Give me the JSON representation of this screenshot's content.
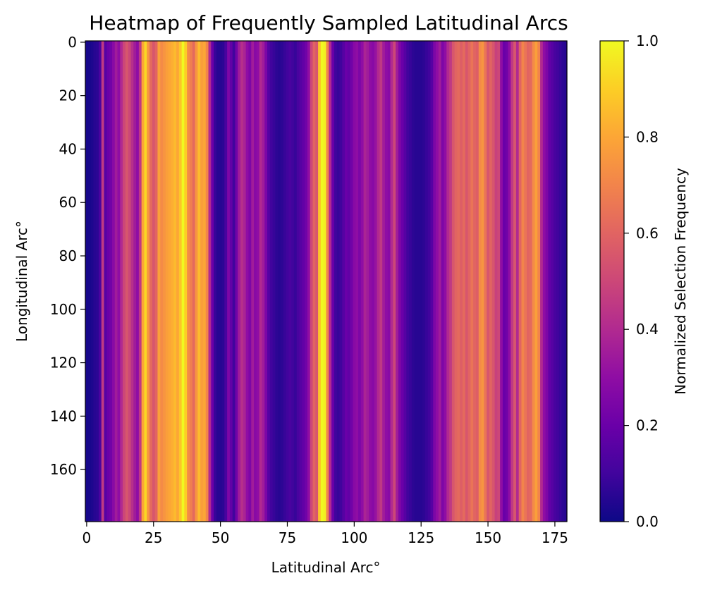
{
  "chart_data": {
    "type": "heatmap",
    "title": "Heatmap of Frequently Sampled Latitudinal Arcs",
    "xlabel": "Latitudinal Arc°",
    "ylabel": "Longitudinal Arc°",
    "colorbar_label": "Normalized Selection Frequency",
    "colormap": "plasma",
    "xlim": [
      0,
      180
    ],
    "ylim": [
      180,
      0
    ],
    "xticks": [
      0,
      25,
      50,
      75,
      100,
      125,
      150,
      175
    ],
    "yticks": [
      0,
      20,
      40,
      60,
      80,
      100,
      120,
      140,
      160
    ],
    "colorbar_range": [
      0.0,
      1.0
    ],
    "colorbar_ticks": [
      "0.0",
      "0.2",
      "0.4",
      "0.6",
      "0.8",
      "1.0"
    ],
    "note_columns": "values per latitudinal arc (0-179); constant along longitudinal axis",
    "column_values": [
      0.02,
      0.02,
      0.03,
      0.05,
      0.06,
      0.12,
      0.45,
      0.15,
      0.2,
      0.22,
      0.28,
      0.35,
      0.3,
      0.4,
      0.5,
      0.55,
      0.5,
      0.42,
      0.35,
      0.3,
      0.45,
      0.8,
      0.92,
      0.75,
      0.62,
      0.55,
      0.6,
      0.78,
      0.72,
      0.75,
      0.78,
      0.8,
      0.82,
      0.85,
      0.8,
      0.88,
      1.0,
      0.9,
      0.72,
      0.68,
      0.62,
      0.75,
      0.85,
      0.78,
      0.8,
      0.7,
      0.4,
      0.2,
      0.08,
      0.05,
      0.05,
      0.06,
      0.12,
      0.25,
      0.18,
      0.1,
      0.22,
      0.35,
      0.42,
      0.38,
      0.3,
      0.25,
      0.35,
      0.28,
      0.3,
      0.4,
      0.35,
      0.25,
      0.15,
      0.1,
      0.08,
      0.06,
      0.05,
      0.06,
      0.08,
      0.1,
      0.12,
      0.1,
      0.08,
      0.12,
      0.15,
      0.18,
      0.22,
      0.3,
      0.5,
      0.6,
      0.55,
      0.88,
      1.0,
      0.98,
      0.7,
      0.4,
      0.2,
      0.1,
      0.08,
      0.1,
      0.15,
      0.2,
      0.18,
      0.22,
      0.28,
      0.3,
      0.25,
      0.3,
      0.38,
      0.35,
      0.3,
      0.28,
      0.32,
      0.4,
      0.45,
      0.35,
      0.3,
      0.28,
      0.4,
      0.5,
      0.35,
      0.25,
      0.2,
      0.15,
      0.1,
      0.08,
      0.06,
      0.05,
      0.05,
      0.05,
      0.06,
      0.08,
      0.1,
      0.15,
      0.25,
      0.3,
      0.35,
      0.25,
      0.3,
      0.4,
      0.45,
      0.55,
      0.6,
      0.62,
      0.58,
      0.62,
      0.55,
      0.6,
      0.65,
      0.6,
      0.58,
      0.72,
      0.75,
      0.65,
      0.55,
      0.6,
      0.55,
      0.48,
      0.5,
      0.3,
      0.2,
      0.22,
      0.3,
      0.45,
      0.55,
      0.4,
      0.6,
      0.7,
      0.65,
      0.6,
      0.62,
      0.72,
      0.78,
      0.7,
      0.4,
      0.3,
      0.25,
      0.18,
      0.15,
      0.12,
      0.1,
      0.08,
      0.06,
      0.05
    ]
  }
}
